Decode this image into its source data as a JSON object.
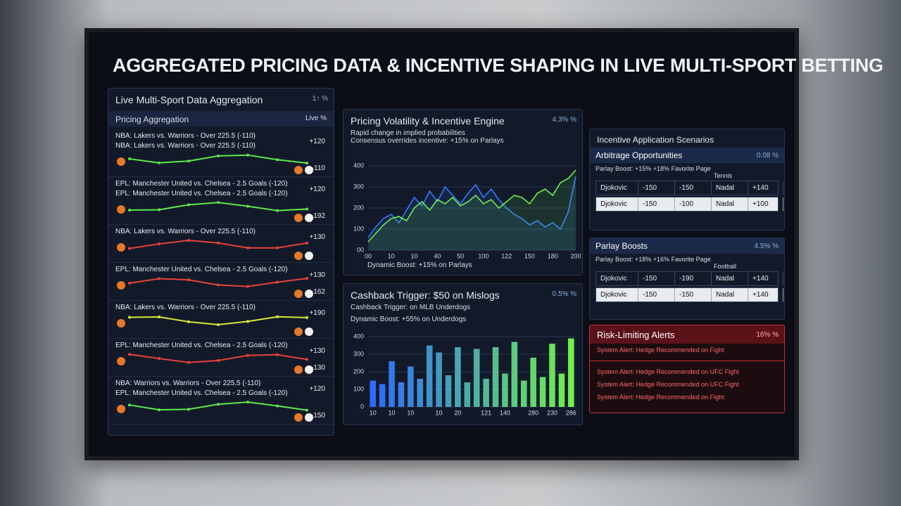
{
  "header": {
    "title": "AGGREGATED PRICING DATA & INCENTIVE SHAPING IN LIVE MULTI-SPORT BETTING"
  },
  "aggregation": {
    "title": "Live Multi-Sport Data Aggregation",
    "badge": "1↑ %",
    "subtitle": "Pricing Aggregation",
    "subtitle_badge": "Live %",
    "groups": [
      {
        "lines": [
          "NBA: Lakers vs. Warriors - Over 225.5 (-110)",
          "NBA: Lakers vs. Warriors - Over 225.5 (-110)"
        ],
        "odds": [
          "+120",
          "-110"
        ],
        "color": "#5de84a"
      },
      {
        "lines": [
          "EPL: Manchester United vs. Chelsea - 2.5 Goals (-120)",
          "EPL: Manchester United vs. Chelsea - 2.5 Goals (-120)"
        ],
        "odds": [
          "+120",
          "-192"
        ],
        "color": "#5de84a"
      },
      {
        "lines": [
          "NBA: Lakers vs. Warriors - Over 225.5 (-110)"
        ],
        "odds": [
          "+130"
        ],
        "color": "#e8423a"
      },
      {
        "lines": [
          "EPL: Manchester United vs. Chelsea - 2.5 Goals (-120)"
        ],
        "odds": [
          "+130",
          "-162"
        ],
        "color": "#e8423a"
      },
      {
        "lines": [
          "NBA: Lakers vs. Warriors - Over 225.5 (-110)"
        ],
        "odds": [
          "+190"
        ],
        "color": "#d8e83a"
      },
      {
        "lines": [
          "EPL: Manchester United vs. Chelsea - 2.5 Goals (-120)"
        ],
        "odds": [
          "+130",
          "-130"
        ],
        "color": "#e8423a"
      },
      {
        "lines": [
          "NBA: Warriors vs. Warriors - Over 225.5 (-110)",
          "EPL: Manchester United vs. Chelsea - 2.5 Goals (-120)"
        ],
        "odds": [
          "+120",
          "-150"
        ],
        "color": "#5de84a"
      }
    ]
  },
  "volatility": {
    "title": "Pricing Volatility & Incentive Engine",
    "badge": "4.3% %",
    "notes": [
      "Rapid change in implied probabilities",
      "Consensus overrides incentive: +15% on Parlays"
    ],
    "caption": "Dynamic Boost: +15% on Parlays",
    "chart": {
      "type": "line",
      "categories": [
        "00",
        null,
        null,
        "10",
        null,
        null,
        "10",
        null,
        null,
        "40",
        null,
        null,
        "50",
        null,
        null,
        "100",
        null,
        null,
        "122",
        null,
        null,
        "150",
        null,
        null,
        "180",
        null,
        null,
        "200"
      ],
      "series": [
        {
          "color": "#2f7bff",
          "values": [
            60,
            110,
            150,
            170,
            130,
            190,
            250,
            210,
            280,
            230,
            300,
            260,
            220,
            270,
            310,
            250,
            290,
            240,
            200,
            170,
            150,
            120,
            140,
            110,
            130,
            100,
            180,
            350
          ]
        },
        {
          "color": "#6ff04a",
          "values": [
            40,
            80,
            120,
            150,
            160,
            140,
            200,
            230,
            190,
            240,
            220,
            250,
            210,
            230,
            260,
            220,
            240,
            200,
            230,
            260,
            250,
            220,
            270,
            290,
            260,
            320,
            340,
            380
          ]
        }
      ],
      "ylim": [
        0,
        400
      ],
      "yticks": [
        {
          "value": 0,
          "label": "00"
        },
        100,
        200,
        300,
        400
      ],
      "grid": true
    }
  },
  "cashback": {
    "title": "Cashback Trigger: $50 on Mislogs",
    "badge": "0.5% %",
    "notes": [
      "Cashback Trigger: on MLB Underdogs",
      "Dynamic Boost: +55% on Underdogs"
    ],
    "chart": {
      "type": "bar",
      "categories": [
        "10",
        null,
        "10",
        null,
        "10",
        null,
        null,
        "10",
        null,
        "20",
        null,
        null,
        "121",
        null,
        "140",
        null,
        null,
        "280",
        null,
        "230",
        null,
        "286"
      ],
      "values": [
        150,
        130,
        260,
        140,
        230,
        160,
        350,
        310,
        180,
        340,
        140,
        330,
        160,
        340,
        190,
        370,
        150,
        280,
        170,
        360,
        190,
        390
      ],
      "colors": [
        "#2f6bff",
        "#6ff04a"
      ],
      "ylim": [
        0,
        400
      ],
      "yticks": [
        0,
        100,
        200,
        300,
        400
      ],
      "grid": true
    }
  },
  "scenarios": {
    "title": "Incentive Application Scenarios",
    "sections": [
      {
        "title": "Arbitrage Opportunities",
        "badge": "0.08 %",
        "note": "Parlay Boost: +15% +18% Favorite Page",
        "sport": "Tennis",
        "rows": [
          [
            "Djokovic",
            "-150",
            "-150",
            "Nadal",
            "+140"
          ],
          [
            "Djokovic",
            "-150",
            "-100",
            "Nadal",
            "+100"
          ]
        ]
      },
      {
        "title": "Parlay Boosts",
        "badge": "4.5% %",
        "note": "Parlay Boost: +18% +16% Favorite Page",
        "sport": "Football",
        "rows": [
          [
            "Djokovic",
            "-150",
            "-190",
            "Nadal",
            "+140"
          ],
          [
            "Djokovic",
            "-150",
            "-150",
            "Nadal",
            "+140"
          ]
        ]
      }
    ]
  },
  "alerts": {
    "title": "Risk-Limiting Alerts",
    "badge": "16% %",
    "items": [
      "System Alert: Hedge Recommended on Fight",
      "System Alert: Hedge Recommended on UFC Fight",
      "System Alert: Hedge Recommended on UFC Fight",
      "System Alert: Hedge Recommended on Fight"
    ]
  }
}
